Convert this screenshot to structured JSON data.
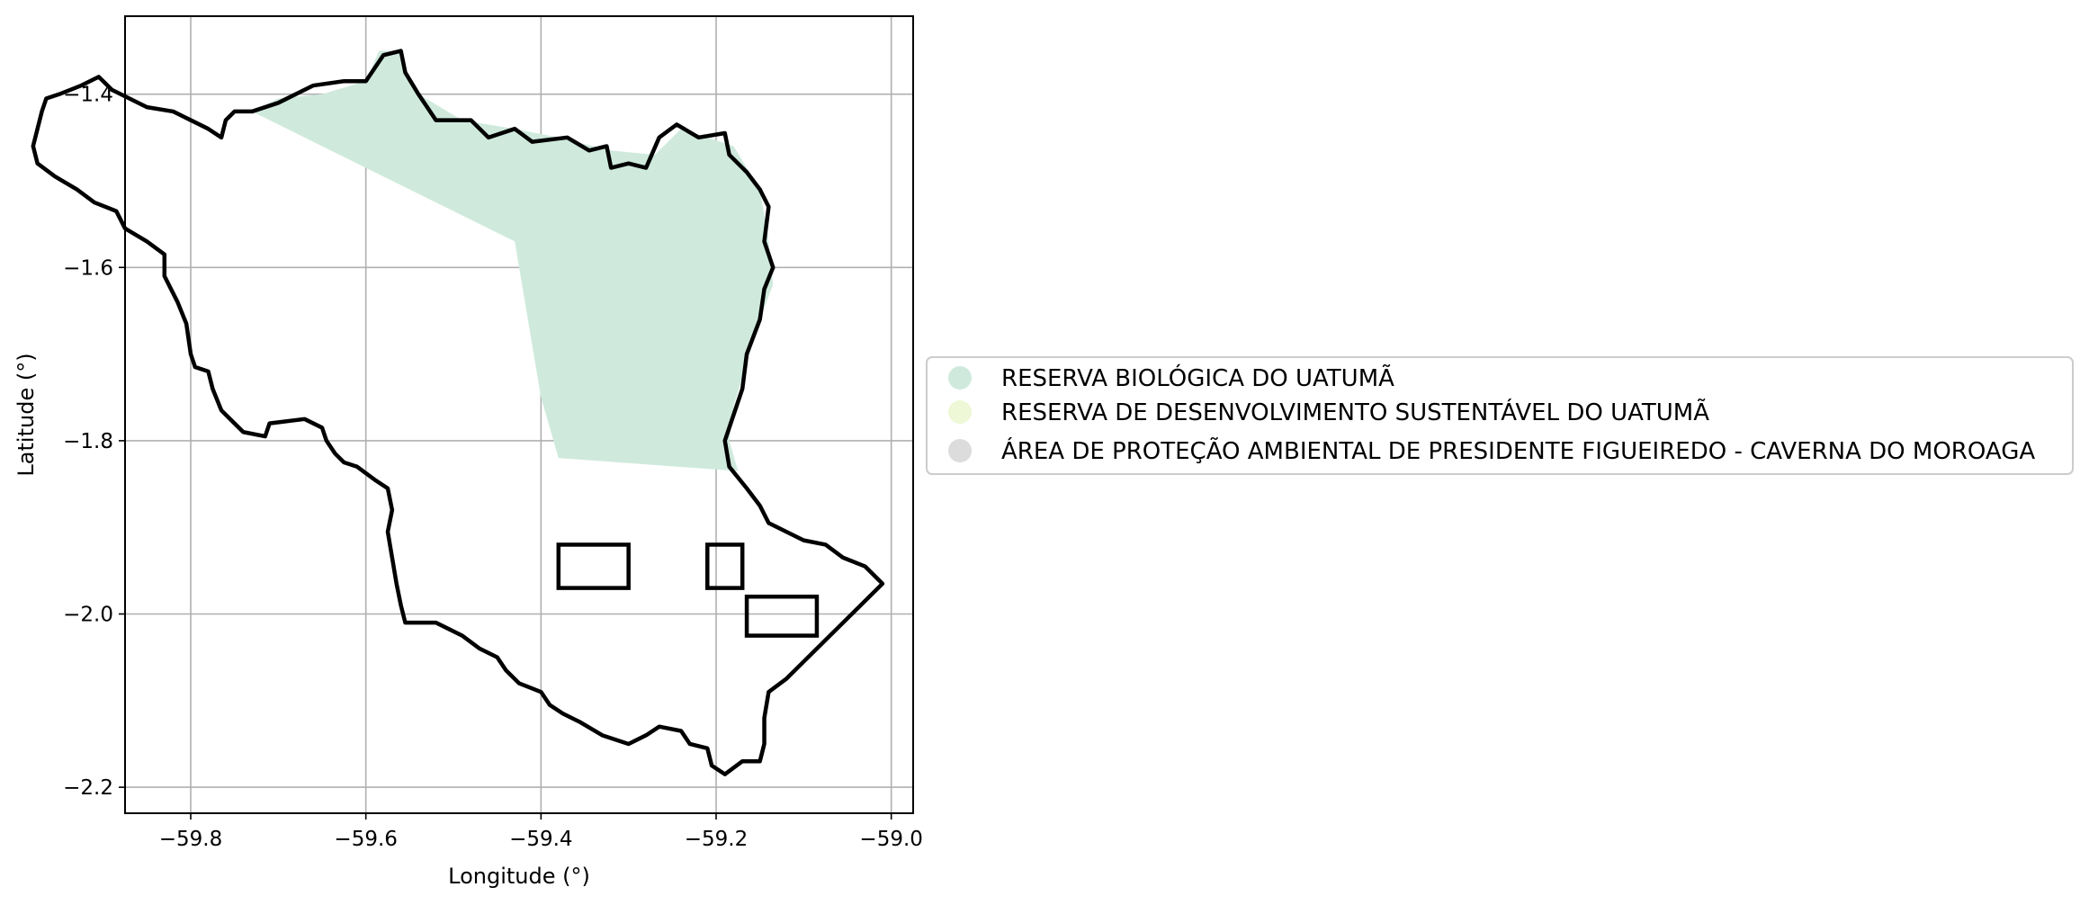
{
  "chart_data": {
    "type": "map",
    "xlabel": "Longitude (°)",
    "ylabel": "Latitude (°)",
    "xlim": [
      -59.875,
      -58.975
    ],
    "ylim": [
      -2.23,
      -1.31
    ],
    "xticks": [
      -59.8,
      -59.6,
      -59.4,
      -59.2,
      -59.0
    ],
    "yticks": [
      -1.4,
      -1.6,
      -1.8,
      -2.0,
      -2.2
    ],
    "xtick_labels": [
      "−59.8",
      "−59.6",
      "−59.4",
      "−59.2",
      "−59.0"
    ],
    "ytick_labels": [
      "−1.4",
      "−1.6",
      "−1.8",
      "−2.0",
      "−2.2"
    ],
    "grid": true,
    "legend_location": "right, outside plot",
    "legend": [
      {
        "label": "RESERVA BIOLÓGICA DO UATUMÃ",
        "color": "#cfeadd"
      },
      {
        "label": "RESERVA DE DESENVOLVIMENTO SUSTENTÁVEL DO UATUMÃ",
        "color": "#eef7d6"
      },
      {
        "label": "ÁREA DE PROTEÇÃO AMBIENTAL DE PRESIDENTE FIGUEIREDO - CAVERNA DO MOROAGA",
        "color": "#dcdcdc"
      }
    ],
    "protected_area": {
      "name": "RESERVA BIOLÓGICA DO UATUMÃ",
      "color": "#cfeadd",
      "lonlat": [
        [
          -59.73,
          -1.42
        ],
        [
          -59.7,
          -1.405
        ],
        [
          -59.65,
          -1.4
        ],
        [
          -59.6,
          -1.385
        ],
        [
          -59.585,
          -1.35
        ],
        [
          -59.56,
          -1.35
        ],
        [
          -59.555,
          -1.37
        ],
        [
          -59.54,
          -1.4
        ],
        [
          -59.49,
          -1.43
        ],
        [
          -59.43,
          -1.44
        ],
        [
          -59.38,
          -1.45
        ],
        [
          -59.32,
          -1.465
        ],
        [
          -59.27,
          -1.47
        ],
        [
          -59.24,
          -1.44
        ],
        [
          -59.18,
          -1.46
        ],
        [
          -59.15,
          -1.51
        ],
        [
          -59.14,
          -1.57
        ],
        [
          -59.135,
          -1.62
        ],
        [
          -59.15,
          -1.66
        ],
        [
          -59.165,
          -1.71
        ],
        [
          -59.18,
          -1.76
        ],
        [
          -59.185,
          -1.8
        ],
        [
          -59.175,
          -1.835
        ],
        [
          -59.38,
          -1.82
        ],
        [
          -59.4,
          -1.75
        ],
        [
          -59.43,
          -1.57
        ],
        [
          -59.73,
          -1.42
        ]
      ]
    },
    "boundary": {
      "lonlat": [
        [
          -59.73,
          -1.42
        ],
        [
          -59.7,
          -1.41
        ],
        [
          -59.66,
          -1.39
        ],
        [
          -59.625,
          -1.385
        ],
        [
          -59.6,
          -1.385
        ],
        [
          -59.58,
          -1.355
        ],
        [
          -59.56,
          -1.35
        ],
        [
          -59.555,
          -1.375
        ],
        [
          -59.54,
          -1.4
        ],
        [
          -59.52,
          -1.43
        ],
        [
          -59.48,
          -1.43
        ],
        [
          -59.46,
          -1.45
        ],
        [
          -59.43,
          -1.44
        ],
        [
          -59.41,
          -1.455
        ],
        [
          -59.37,
          -1.45
        ],
        [
          -59.345,
          -1.465
        ],
        [
          -59.325,
          -1.46
        ],
        [
          -59.32,
          -1.485
        ],
        [
          -59.3,
          -1.48
        ],
        [
          -59.28,
          -1.485
        ],
        [
          -59.265,
          -1.45
        ],
        [
          -59.245,
          -1.435
        ],
        [
          -59.22,
          -1.45
        ],
        [
          -59.19,
          -1.445
        ],
        [
          -59.185,
          -1.47
        ],
        [
          -59.165,
          -1.49
        ],
        [
          -59.15,
          -1.51
        ],
        [
          -59.14,
          -1.53
        ],
        [
          -59.145,
          -1.57
        ],
        [
          -59.135,
          -1.6
        ],
        [
          -59.145,
          -1.625
        ],
        [
          -59.15,
          -1.66
        ],
        [
          -59.165,
          -1.7
        ],
        [
          -59.17,
          -1.74
        ],
        [
          -59.18,
          -1.77
        ],
        [
          -59.19,
          -1.8
        ],
        [
          -59.185,
          -1.83
        ],
        [
          -59.165,
          -1.855
        ],
        [
          -59.15,
          -1.875
        ],
        [
          -59.14,
          -1.895
        ],
        [
          -59.12,
          -1.905
        ],
        [
          -59.1,
          -1.915
        ],
        [
          -59.075,
          -1.92
        ],
        [
          -59.055,
          -1.935
        ],
        [
          -59.03,
          -1.945
        ],
        [
          -59.015,
          -1.96
        ],
        [
          -59.01,
          -1.965
        ],
        [
          -59.03,
          -1.985
        ],
        [
          -59.06,
          -2.015
        ],
        [
          -59.09,
          -2.045
        ],
        [
          -59.12,
          -2.075
        ],
        [
          -59.14,
          -2.09
        ],
        [
          -59.145,
          -2.12
        ],
        [
          -59.145,
          -2.15
        ],
        [
          -59.15,
          -2.17
        ],
        [
          -59.17,
          -2.17
        ],
        [
          -59.19,
          -2.185
        ],
        [
          -59.205,
          -2.175
        ],
        [
          -59.21,
          -2.155
        ],
        [
          -59.23,
          -2.15
        ],
        [
          -59.24,
          -2.135
        ],
        [
          -59.265,
          -2.13
        ],
        [
          -59.28,
          -2.14
        ],
        [
          -59.3,
          -2.15
        ],
        [
          -59.33,
          -2.14
        ],
        [
          -59.355,
          -2.125
        ],
        [
          -59.375,
          -2.115
        ],
        [
          -59.39,
          -2.105
        ],
        [
          -59.4,
          -2.09
        ],
        [
          -59.425,
          -2.08
        ],
        [
          -59.44,
          -2.065
        ],
        [
          -59.45,
          -2.05
        ],
        [
          -59.47,
          -2.04
        ],
        [
          -59.49,
          -2.025
        ],
        [
          -59.51,
          -2.015
        ],
        [
          -59.52,
          -2.01
        ],
        [
          -59.555,
          -2.01
        ],
        [
          -59.56,
          -1.99
        ],
        [
          -59.565,
          -1.965
        ],
        [
          -59.57,
          -1.935
        ],
        [
          -59.575,
          -1.905
        ],
        [
          -59.57,
          -1.88
        ],
        [
          -59.575,
          -1.855
        ],
        [
          -59.59,
          -1.845
        ],
        [
          -59.61,
          -1.83
        ],
        [
          -59.625,
          -1.825
        ],
        [
          -59.635,
          -1.815
        ],
        [
          -59.645,
          -1.8
        ],
        [
          -59.65,
          -1.785
        ],
        [
          -59.67,
          -1.775
        ],
        [
          -59.71,
          -1.78
        ],
        [
          -59.715,
          -1.795
        ],
        [
          -59.74,
          -1.79
        ],
        [
          -59.765,
          -1.765
        ],
        [
          -59.775,
          -1.74
        ],
        [
          -59.78,
          -1.72
        ],
        [
          -59.795,
          -1.715
        ],
        [
          -59.8,
          -1.7
        ],
        [
          -59.805,
          -1.665
        ],
        [
          -59.815,
          -1.64
        ],
        [
          -59.83,
          -1.61
        ],
        [
          -59.83,
          -1.585
        ],
        [
          -59.85,
          -1.57
        ],
        [
          -59.875,
          -1.555
        ],
        [
          -59.885,
          -1.535
        ],
        [
          -59.91,
          -1.525
        ],
        [
          -59.93,
          -1.51
        ],
        [
          -59.955,
          -1.495
        ],
        [
          -59.975,
          -1.48
        ],
        [
          -59.98,
          -1.46
        ],
        [
          -59.975,
          -1.44
        ],
        [
          -59.97,
          -1.42
        ],
        [
          -59.965,
          -1.405
        ],
        [
          -59.95,
          -1.4
        ],
        [
          -59.925,
          -1.39
        ],
        [
          -59.905,
          -1.38
        ],
        [
          -59.89,
          -1.395
        ],
        [
          -59.87,
          -1.405
        ],
        [
          -59.85,
          -1.415
        ],
        [
          -59.82,
          -1.42
        ],
        [
          -59.8,
          -1.43
        ],
        [
          -59.78,
          -1.44
        ],
        [
          -59.765,
          -1.45
        ],
        [
          -59.76,
          -1.43
        ],
        [
          -59.75,
          -1.42
        ],
        [
          -59.73,
          -1.42
        ]
      ]
    },
    "rectangles": [
      {
        "lon": [
          -59.38,
          -59.3
        ],
        "lat": [
          -1.92,
          -1.97
        ]
      },
      {
        "lon": [
          -59.21,
          -59.17
        ],
        "lat": [
          -1.92,
          -1.97
        ]
      },
      {
        "lon": [
          -59.165,
          -59.085
        ],
        "lat": [
          -1.98,
          -2.025
        ]
      }
    ]
  }
}
